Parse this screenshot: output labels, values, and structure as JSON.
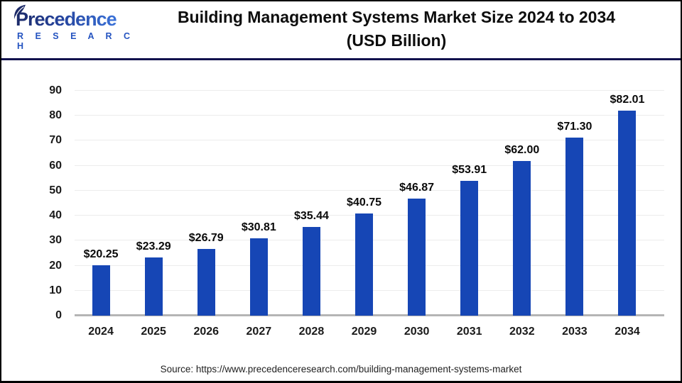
{
  "header": {
    "logo": {
      "name": "Precedence",
      "subtitle": "R E S E A R C H"
    },
    "title_line1": "Building Management Systems Market Size 2024 to 2034",
    "title_line2": "(USD Billion)"
  },
  "chart_data": {
    "type": "bar",
    "title": "Building Management Systems Market Size 2024 to 2034 (USD Billion)",
    "categories": [
      "2024",
      "2025",
      "2026",
      "2027",
      "2028",
      "2029",
      "2030",
      "2031",
      "2032",
      "2033",
      "2034"
    ],
    "values": [
      20.25,
      23.29,
      26.79,
      30.81,
      35.44,
      40.75,
      46.87,
      53.91,
      62.0,
      71.3,
      82.01
    ],
    "value_labels": [
      "$20.25",
      "$23.29",
      "$26.79",
      "$30.81",
      "$35.44",
      "$40.75",
      "$46.87",
      "$53.91",
      "$62.00",
      "$71.30",
      "$82.01"
    ],
    "xlabel": "",
    "ylabel": "",
    "ylim": [
      0,
      90
    ],
    "yticks": [
      0,
      10,
      20,
      30,
      40,
      50,
      60,
      70,
      80,
      90
    ],
    "grid": true,
    "legend": false,
    "bar_color": "#1646b5",
    "gridline_color": "#ececec",
    "baseline_color": "#b5b5b5"
  },
  "footer": {
    "source": "Source: https://www.precedenceresearch.com/building-management-systems-market"
  },
  "colors": {
    "accent_navy": "#12124e",
    "logo_dark": "#1c2a68",
    "logo_light": "#3a72d9",
    "title_text": "#0d0d0d"
  }
}
